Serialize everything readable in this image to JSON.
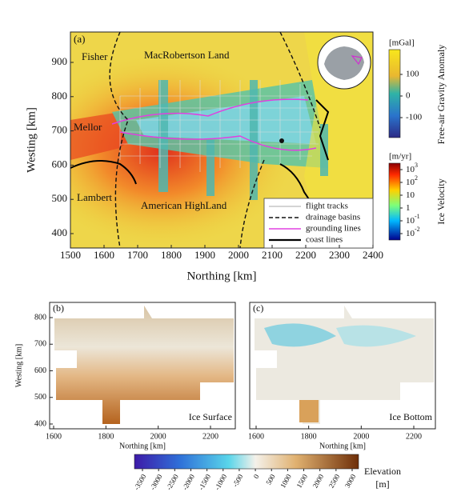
{
  "panel_a": {
    "label": "(a)",
    "xlabel": "Northing [km]",
    "ylabel": "Westing [km]",
    "xticks": [
      1500,
      1600,
      1700,
      1800,
      1900,
      2000,
      2100,
      2200,
      2300,
      2400
    ],
    "yticks": [
      400,
      500,
      600,
      700,
      800,
      900
    ],
    "regions": [
      "Fisher",
      "MacRobertson Land",
      "Mellor",
      "Lambert",
      "American HighLand"
    ],
    "legend": [
      "flight tracks",
      "drainage basins",
      "grounding lines",
      "coast lines"
    ],
    "gravity_colorbar": {
      "unit": "[mGal]",
      "title": "Free-air Gravity Anomaly",
      "ticks": [
        100,
        0,
        -100
      ]
    },
    "velocity_colorbar": {
      "unit": "[m/yr]",
      "title": "Ice Velocity",
      "ticks": [
        {
          "base": "10",
          "sup": "3"
        },
        {
          "base": "10",
          "sup": "2"
        },
        {
          "base": "10"
        },
        {
          "base": "1"
        },
        {
          "base": "10",
          "sup": "-1"
        },
        {
          "base": "10",
          "sup": "-2"
        }
      ]
    }
  },
  "panel_b": {
    "label": "(b)",
    "name": "Ice Surface",
    "xlabel": "Northing [km]",
    "ylabel": "Westing [km]",
    "xticks": [
      1600,
      1800,
      2000,
      2200
    ],
    "yticks": [
      400,
      500,
      600,
      700,
      800
    ]
  },
  "panel_c": {
    "label": "(c)",
    "name": "Ice Bottom",
    "xlabel": "Northing [km]",
    "xticks": [
      1600,
      1800,
      2000,
      2200
    ]
  },
  "elevation_colorbar": {
    "title": "Elevation",
    "unit": "[m]",
    "ticks": [
      -3500,
      -3000,
      -2500,
      -2000,
      -1500,
      -1000,
      -500,
      0,
      500,
      1000,
      1500,
      2000,
      2500,
      3000
    ]
  }
}
